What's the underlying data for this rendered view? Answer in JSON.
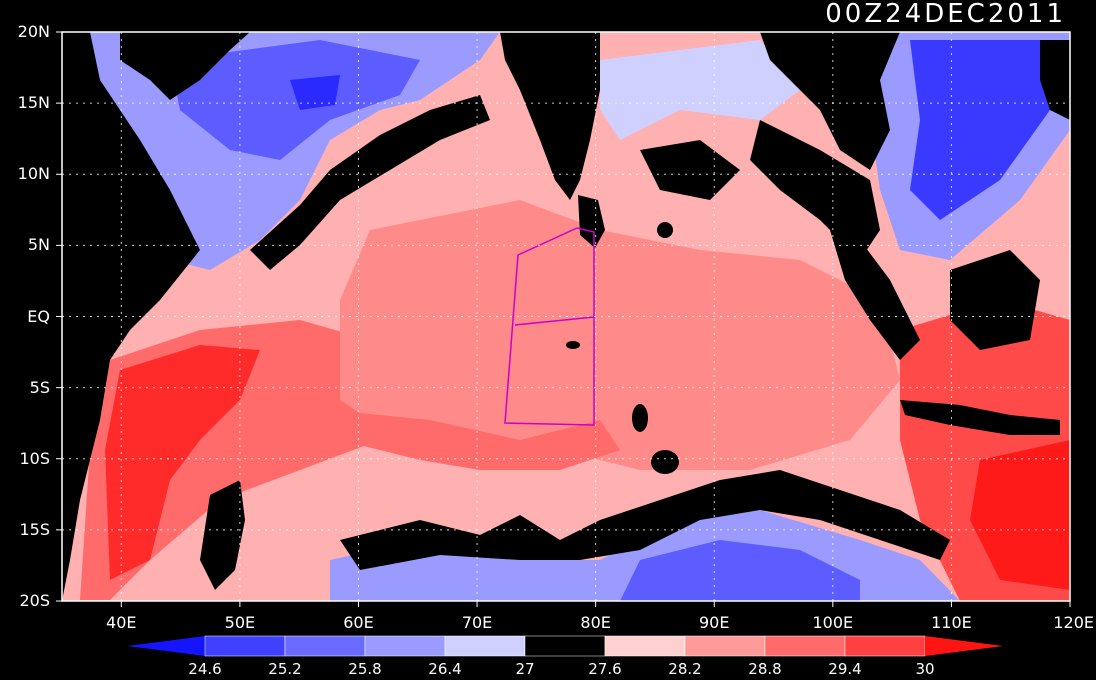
{
  "title": "00Z24DEC2011",
  "map": {
    "lon_range": [
      35,
      120
    ],
    "lat_range": [
      -20,
      20
    ],
    "lat_ticks": [
      {
        "value": 20,
        "label": "20N"
      },
      {
        "value": 15,
        "label": "15N"
      },
      {
        "value": 10,
        "label": "10N"
      },
      {
        "value": 5,
        "label": "5N"
      },
      {
        "value": 0,
        "label": "EQ"
      },
      {
        "value": -5,
        "label": "5S"
      },
      {
        "value": -10,
        "label": "10S"
      },
      {
        "value": -15,
        "label": "15S"
      },
      {
        "value": -20,
        "label": "20S"
      }
    ],
    "lon_ticks": [
      {
        "value": 40,
        "label": "40E"
      },
      {
        "value": 50,
        "label": "50E"
      },
      {
        "value": 60,
        "label": "60E"
      },
      {
        "value": 70,
        "label": "70E"
      },
      {
        "value": 80,
        "label": "80E"
      },
      {
        "value": 90,
        "label": "90E"
      },
      {
        "value": 100,
        "label": "100E"
      },
      {
        "value": 110,
        "label": "110E"
      },
      {
        "value": 120,
        "label": "120E"
      }
    ],
    "grid": "dotted",
    "land_color": "#000000",
    "box_outline_color": "#cc00cc"
  },
  "colorbar": {
    "levels": [
      "24.6",
      "25.2",
      "25.8",
      "26.4",
      "27",
      "27.6",
      "28.2",
      "28.8",
      "29.4",
      "30"
    ],
    "colors": [
      "#1414ff",
      "#4040ff",
      "#6a6aff",
      "#9a9aff",
      "#d0d0ff",
      "#000000",
      "#ffd0d0",
      "#ff9a9a",
      "#ff6a6a",
      "#ff4040",
      "#ff1414"
    ]
  }
}
